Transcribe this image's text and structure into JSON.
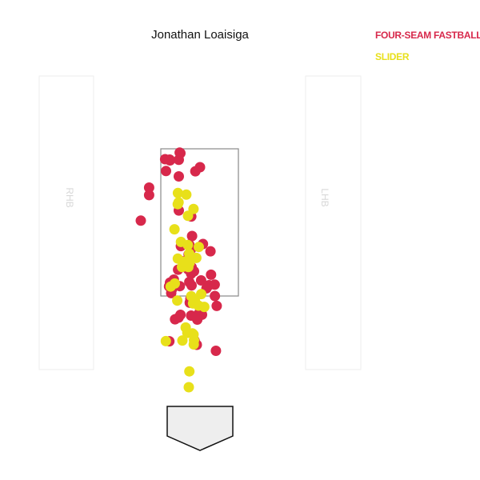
{
  "chart_data": {
    "type": "scatter",
    "title": "Jonathan Loaisiga",
    "xlabel": "",
    "ylabel": "",
    "batter_boxes": {
      "left": "RHB",
      "right": "LHB"
    },
    "legend_position": "top-right",
    "grid": false,
    "series": [
      {
        "name": "FOUR-SEAM FASTBALL",
        "color": "#d7284b",
        "points": [
          [
            -37.5,
            307.5
          ],
          [
            -26.5,
            287.5
          ],
          [
            -26.5,
            308.2
          ],
          [
            -24.5,
            316.5
          ],
          [
            -25.4,
            317.2
          ],
          [
            0,
            299
          ],
          [
            -26.5,
            244.9
          ],
          [
            -42.5,
            294.2
          ],
          [
            -63.6,
            264.1
          ],
          [
            -63.6,
            273.5
          ],
          [
            -74,
            232.2
          ],
          [
            -37.5,
            154.8
          ],
          [
            -10.5,
            151.2
          ],
          [
            -10.5,
            174
          ],
          [
            -14.2,
            190
          ],
          [
            -7.5,
            168.9
          ],
          [
            -12.8,
            129.6
          ],
          [
            -35.1,
            146.2
          ],
          [
            -34.1,
            151.5
          ],
          [
            -6.8,
            82.3
          ],
          [
            2.5,
            114.6
          ],
          [
            -1.3,
            116.3
          ],
          [
            1.5,
            121.9
          ],
          [
            -11.1,
            113.5
          ],
          [
            -4,
            77
          ],
          [
            -38.3,
            81.4
          ],
          [
            20.9,
            125.6
          ],
          [
            -14.1,
            178.9
          ],
          [
            11.3,
            151.5
          ],
          [
            13.8,
            164.6
          ],
          [
            -14.9,
            171.3
          ],
          [
            -32.7,
            158.5
          ],
          [
            19.9,
            69.5
          ],
          [
            -13.4,
            202.1
          ],
          [
            -10.9,
            237.4
          ],
          [
            -36,
            141.6
          ],
          [
            -23.9,
            200.4
          ],
          [
            13.1,
            193.9
          ],
          [
            -20.5,
            181.4
          ],
          [
            -11.2,
            196.6
          ],
          [
            3.7,
            203
          ],
          [
            -9.9,
            213
          ],
          [
            -38.7,
            150
          ],
          [
            -27.4,
            170.9
          ],
          [
            18.6,
            138
          ],
          [
            1.4,
            157.5
          ],
          [
            -31.2,
            108.9
          ],
          [
            -37.9,
            308.5
          ],
          [
            -43.6,
            309
          ],
          [
            -11.1,
            165.9
          ],
          [
            -25.2,
            150.3
          ],
          [
            -5.8,
            293.9
          ],
          [
            8.1,
            147.6
          ],
          [
            18.4,
            152.2
          ],
          [
            -3.4,
            108.5
          ],
          [
            -24.4,
            114.5
          ],
          [
            -26.8,
            111
          ],
          [
            -13.4,
            155.5
          ],
          [
            -12,
            134.5
          ],
          [
            -10.6,
            173.9
          ]
        ]
      },
      {
        "name": "SLIDER",
        "color": "#e8e01a",
        "points": [
          [
            -14,
            24
          ],
          [
            -13.3,
            43.8
          ],
          [
            -27.7,
            184.8
          ],
          [
            -15,
            238.2
          ],
          [
            -4.6,
            185.6
          ],
          [
            -1.5,
            199.3
          ],
          [
            -31.9,
            221.4
          ],
          [
            -14.6,
            174.2
          ],
          [
            5.4,
            124.4
          ],
          [
            -13.5,
            191
          ],
          [
            -8.1,
            246.8
          ],
          [
            -17.9,
            98.6
          ],
          [
            -27.6,
            266.7
          ],
          [
            -7.8,
            77.5
          ],
          [
            -1.9,
            126
          ],
          [
            -15.2,
            201.7
          ],
          [
            -28.4,
            132.3
          ],
          [
            -11,
            137.8
          ],
          [
            -9.5,
            91.3
          ],
          [
            -27.8,
            252.8
          ],
          [
            -22.5,
            174.2
          ],
          [
            -20.7,
            180.5
          ],
          [
            -22,
            82.4
          ],
          [
            -36.7,
            149.8
          ],
          [
            -19.3,
            181
          ],
          [
            -42.7,
            81.6
          ],
          [
            -7.5,
            82.8
          ],
          [
            -8.1,
            89.9
          ],
          [
            1.5,
            140.4
          ],
          [
            -17.1,
            264.7
          ],
          [
            -26.8,
            255
          ],
          [
            -13,
            179.5
          ],
          [
            -15.8,
            91.9
          ],
          [
            -23.8,
            205.6
          ],
          [
            -31.5,
            153.6
          ],
          [
            -6.3,
            132
          ],
          [
            -8.7,
            128.7
          ],
          [
            -6.2,
            129.4
          ]
        ]
      }
    ]
  }
}
